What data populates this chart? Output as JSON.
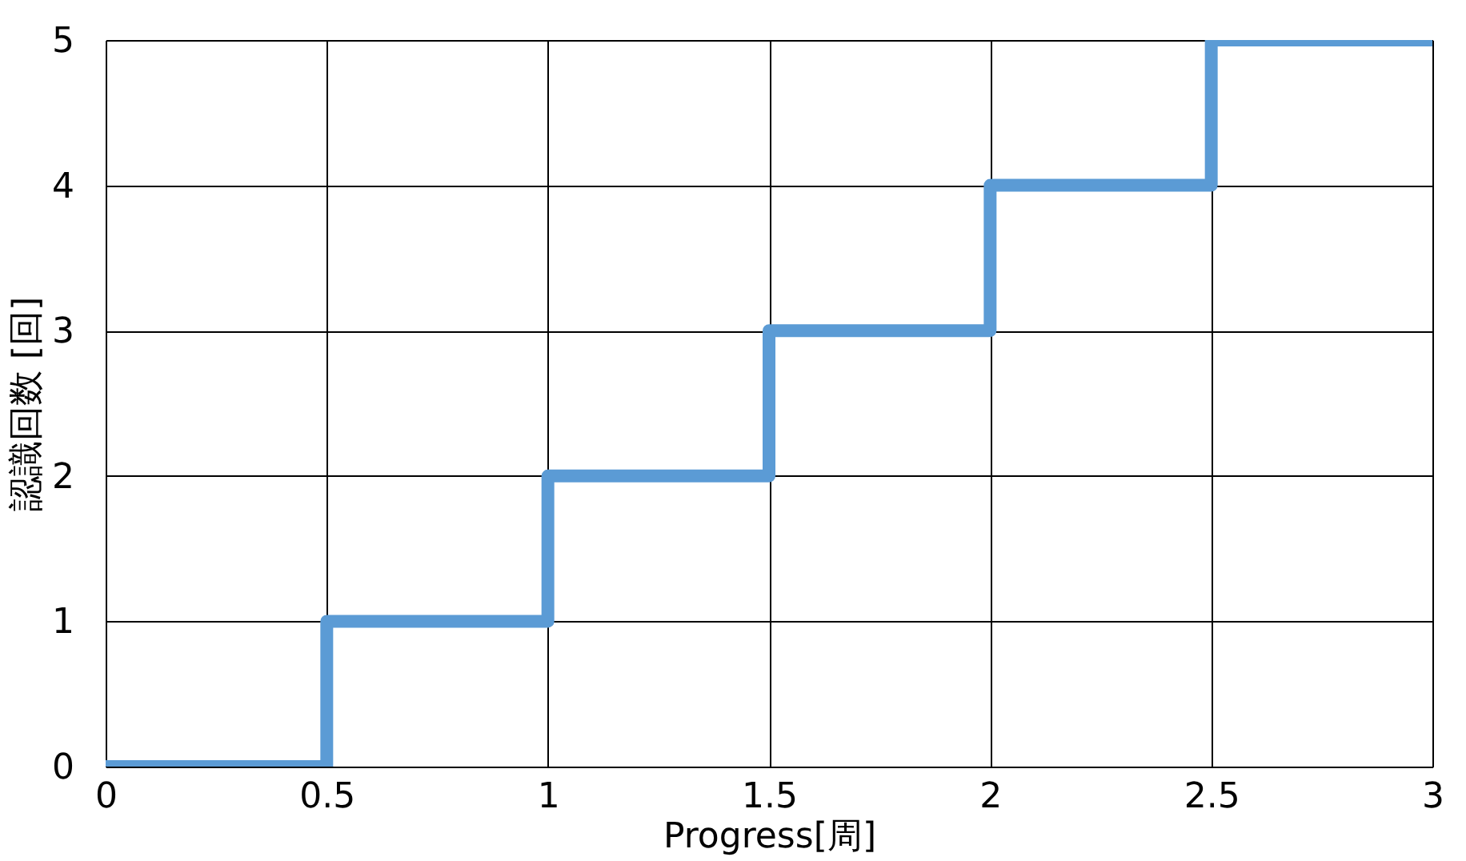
{
  "chart_data": {
    "type": "step",
    "xlabel": "Progress[周]",
    "ylabel": "認識回数 [回]",
    "x": [
      0,
      0.5,
      1,
      1.5,
      2,
      2.5,
      3
    ],
    "series": [
      {
        "color": "#5b9bd5",
        "values": [
          0,
          1,
          2,
          3,
          4,
          5,
          5
        ]
      }
    ],
    "xlim": [
      0,
      3
    ],
    "xticks": [
      0,
      0.5,
      1,
      1.5,
      2,
      2.5,
      3
    ],
    "ylim": [
      0,
      5
    ],
    "yticks": [
      0,
      1,
      2,
      3,
      4,
      5
    ],
    "grid": true
  }
}
